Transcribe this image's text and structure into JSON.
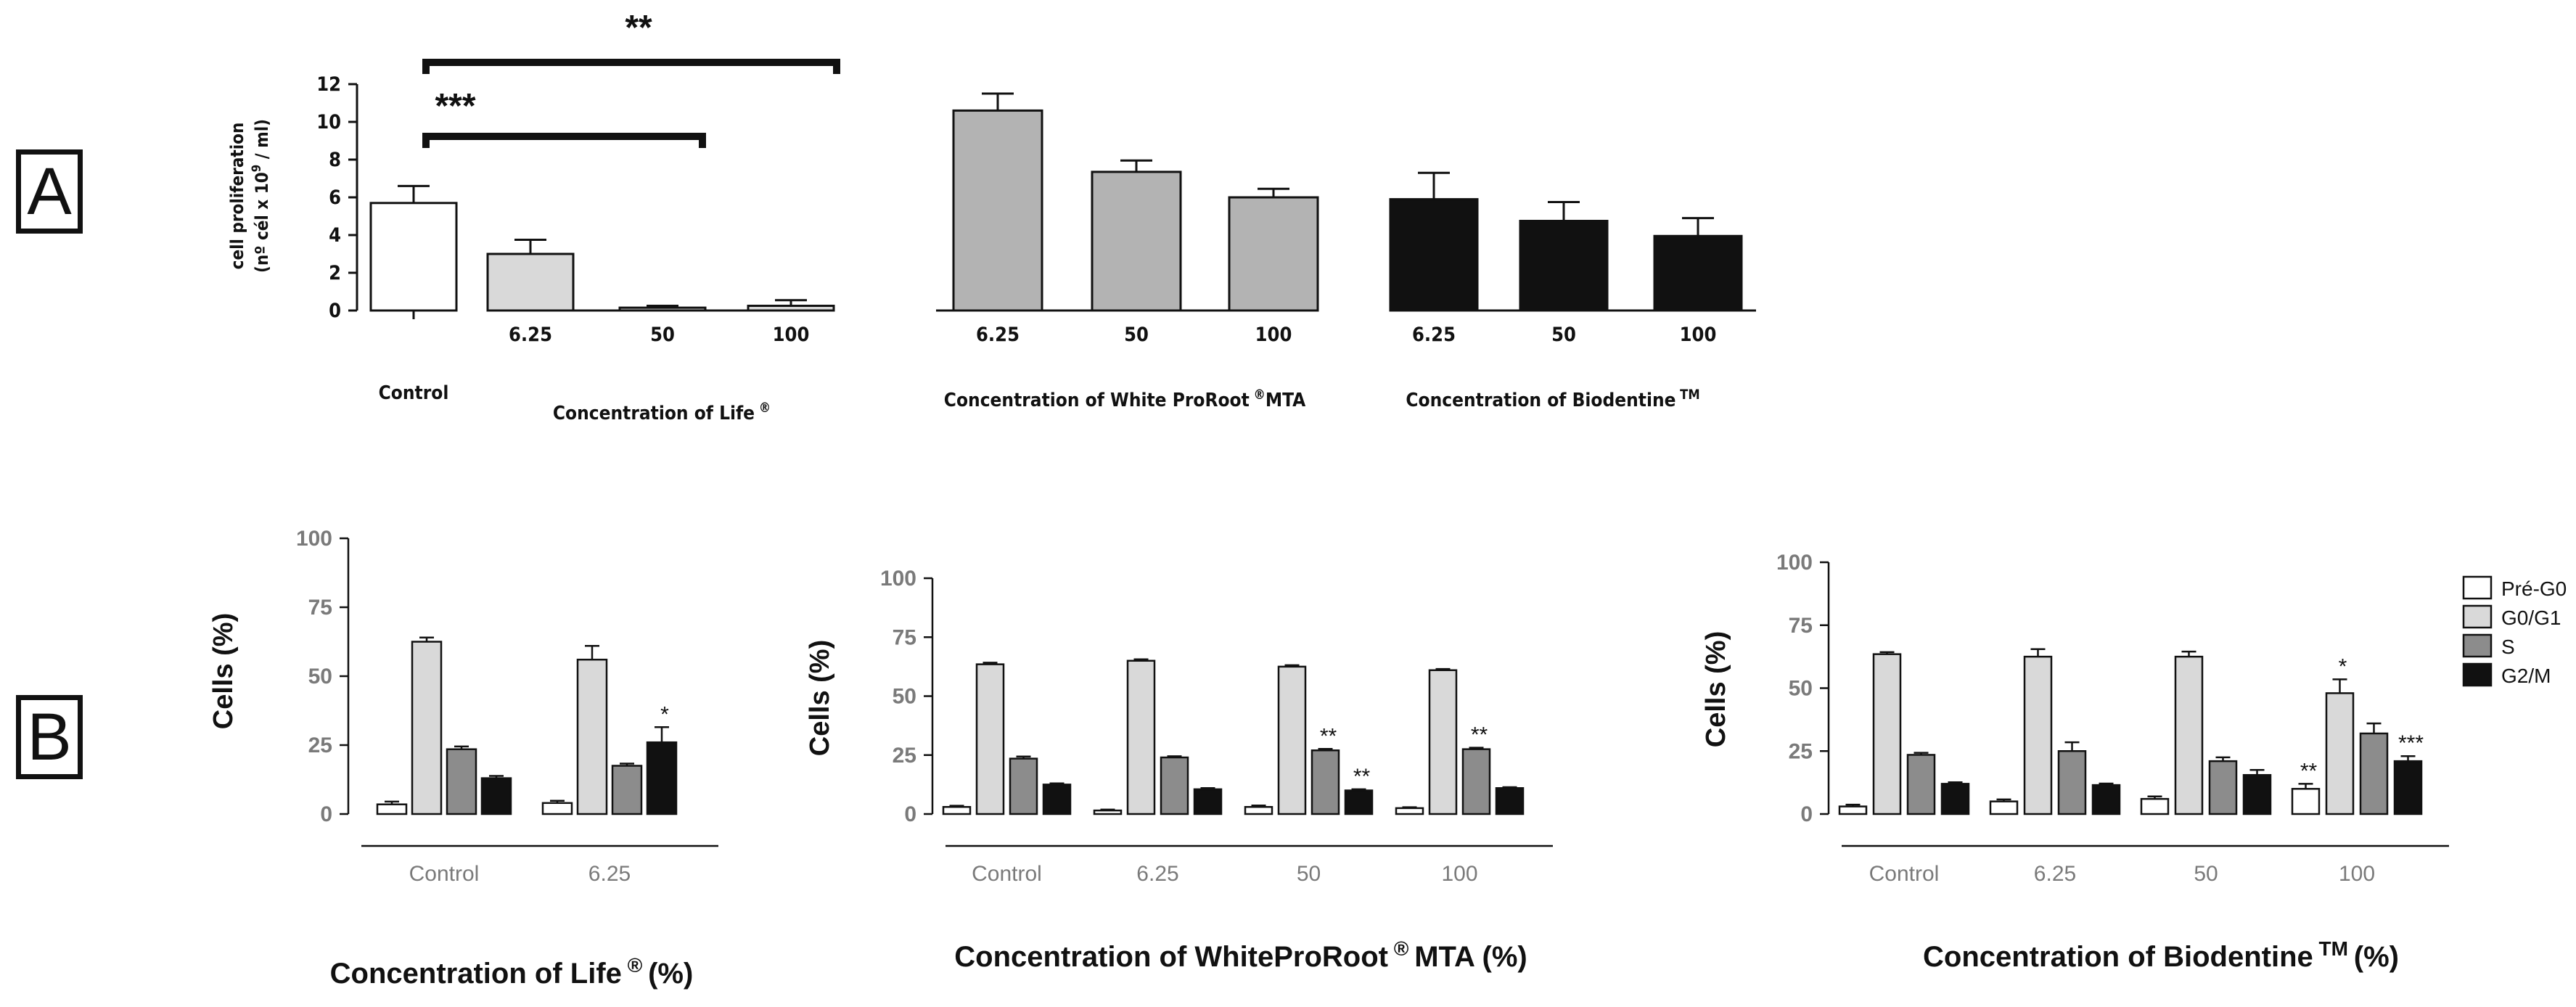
{
  "panels": {
    "a": "A",
    "b": "B"
  },
  "chart_data": [
    {
      "type": "bar",
      "panel": "A",
      "ylabel_line1": "cell proliferation",
      "ylabel_line2": "(nº cél x 10",
      "ylabel_sup": "9",
      "ylabel_line2_end": " / ml)",
      "yticks": [
        "0",
        "2",
        "4",
        "6",
        "8",
        "10",
        "12"
      ],
      "ylim": [
        0,
        12
      ],
      "groups": [
        {
          "label": "Control",
          "color": "#ffffff",
          "categories": [
            ""
          ],
          "values": [
            5.7
          ],
          "errors": [
            0.9
          ]
        },
        {
          "label": "Concentration of Life",
          "label_sup": "®",
          "color": "#d9d9d9",
          "categories": [
            "6.25",
            "50",
            "100"
          ],
          "values": [
            3.0,
            0.15,
            0.25
          ],
          "errors": [
            0.75,
            0.1,
            0.3
          ]
        },
        {
          "label": "Concentration of White ProRoot",
          "label_sup": "®",
          "label_end": "MTA",
          "color": "#b3b3b3",
          "categories": [
            "6.25",
            "50",
            "100"
          ],
          "values": [
            10.6,
            7.35,
            6.0
          ],
          "errors": [
            0.9,
            0.6,
            0.45
          ]
        },
        {
          "label": "Concentration of Biodentine",
          "label_sup": "TM",
          "color": "#111111",
          "categories": [
            "6.25",
            "50",
            "100"
          ],
          "values": [
            5.9,
            4.75,
            3.95
          ],
          "errors": [
            1.4,
            1.0,
            0.95
          ]
        }
      ],
      "brackets": [
        {
          "from": "Control",
          "to": "100",
          "label": "**"
        },
        {
          "from": "Control",
          "to": "50",
          "label": "***"
        }
      ]
    },
    {
      "type": "bar",
      "panel": "B1",
      "ylabel": "Cells (%)",
      "xlabel": "Concentration of Life",
      "xlabel_sup": "®",
      "xlabel_end": "(%)",
      "ylim": [
        0,
        100
      ],
      "yticks": [
        "0",
        "25",
        "50",
        "75",
        "100"
      ],
      "categories": [
        "Control",
        "6.25"
      ],
      "series": [
        {
          "name": "Pré-G0",
          "values": [
            3.5,
            4.0
          ],
          "errors": [
            1.0,
            0.8
          ],
          "sig": [
            "",
            ""
          ]
        },
        {
          "name": "G0/G1",
          "values": [
            62.5,
            56.0
          ],
          "errors": [
            1.5,
            5.0
          ],
          "sig": [
            "",
            ""
          ]
        },
        {
          "name": "S",
          "values": [
            23.5,
            17.5
          ],
          "errors": [
            1.0,
            0.8
          ],
          "sig": [
            "",
            ""
          ]
        },
        {
          "name": "G2/M",
          "values": [
            13.0,
            26.0
          ],
          "errors": [
            0.8,
            5.5
          ],
          "sig": [
            "",
            "*"
          ]
        }
      ]
    },
    {
      "type": "bar",
      "panel": "B2",
      "ylabel": "Cells (%)",
      "xlabel": "Concentration of WhiteProRoot",
      "xlabel_sup": "®",
      "xlabel_end": "MTA (%)",
      "ylim": [
        0,
        100
      ],
      "yticks": [
        "0",
        "25",
        "50",
        "75",
        "100"
      ],
      "categories": [
        "Control",
        "6.25",
        "50",
        "100"
      ],
      "series": [
        {
          "name": "Pré-G0",
          "values": [
            3.0,
            1.5,
            3.0,
            2.5
          ],
          "errors": [
            0.5,
            0.4,
            0.6,
            0.4
          ],
          "sig": [
            "",
            "",
            "",
            ""
          ]
        },
        {
          "name": "G0/G1",
          "values": [
            63.5,
            65.0,
            62.5,
            61.0
          ],
          "errors": [
            0.7,
            0.6,
            0.6,
            0.5
          ],
          "sig": [
            "",
            "",
            "",
            ""
          ]
        },
        {
          "name": "S",
          "values": [
            23.5,
            24.0,
            27.0,
            27.5
          ],
          "errors": [
            0.9,
            0.5,
            0.6,
            0.6
          ],
          "sig": [
            "",
            "",
            "**",
            "**"
          ]
        },
        {
          "name": "G2/M",
          "values": [
            12.5,
            10.5,
            10.0,
            11.0
          ],
          "errors": [
            0.5,
            0.5,
            0.5,
            0.4
          ],
          "sig": [
            "",
            "",
            "**",
            ""
          ]
        }
      ]
    },
    {
      "type": "bar",
      "panel": "B3",
      "ylabel": "Cells (%)",
      "xlabel": "Concentration of Biodentine",
      "xlabel_sup": "TM",
      "xlabel_end": "(%)",
      "ylim": [
        0,
        100
      ],
      "yticks": [
        "0",
        "25",
        "50",
        "75",
        "100"
      ],
      "categories": [
        "Control",
        "6.25",
        "50",
        "100"
      ],
      "series": [
        {
          "name": "Pré-G0",
          "values": [
            3.0,
            5.0,
            6.0,
            10.0
          ],
          "errors": [
            0.7,
            0.8,
            1.0,
            2.0
          ],
          "sig": [
            "",
            "",
            "",
            "**"
          ]
        },
        {
          "name": "G0/G1",
          "values": [
            63.5,
            62.5,
            62.5,
            48.0
          ],
          "errors": [
            0.8,
            3.0,
            2.0,
            5.5
          ],
          "sig": [
            "",
            "",
            "",
            "*"
          ]
        },
        {
          "name": "S",
          "values": [
            23.5,
            25.0,
            21.0,
            32.0
          ],
          "errors": [
            0.8,
            3.5,
            1.5,
            4.0
          ],
          "sig": [
            "",
            "",
            "",
            ""
          ]
        },
        {
          "name": "G2/M",
          "values": [
            12.0,
            11.5,
            15.5,
            21.0
          ],
          "errors": [
            0.6,
            0.6,
            2.0,
            2.0
          ],
          "sig": [
            "",
            "",
            "",
            "***"
          ]
        }
      ]
    }
  ],
  "legend": {
    "items": [
      {
        "name": "Pré-G0",
        "color": "#ffffff"
      },
      {
        "name": "G0/G1",
        "color": "#d9d9d9"
      },
      {
        "name": "S",
        "color": "#8c8c8c"
      },
      {
        "name": "G2/M",
        "color": "#111111"
      }
    ]
  }
}
